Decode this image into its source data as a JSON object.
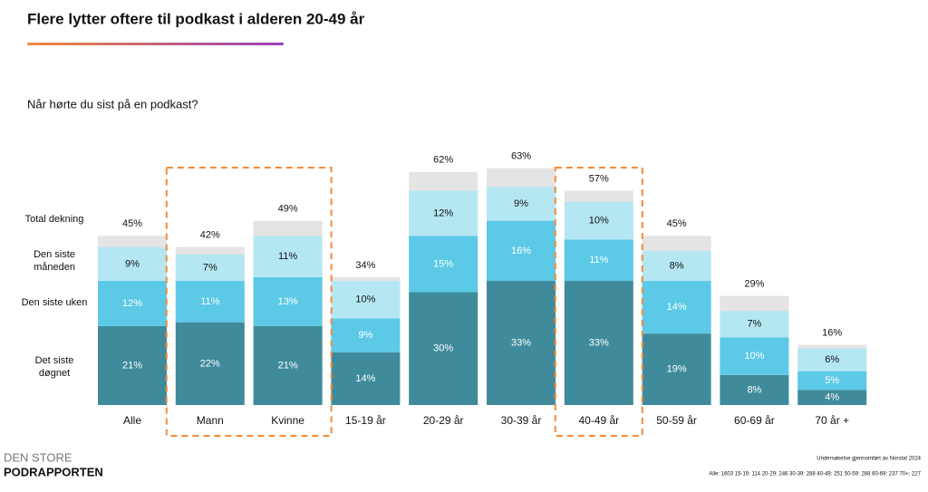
{
  "title": "Flere lytter oftere til podkast i alderen 20-49 år",
  "chart_data": {
    "type": "stacked-bar",
    "subtitle": "Når hørte du sist på en podkast?",
    "categories": [
      "Alle",
      "Mann",
      "Kvinne",
      "15-19 år",
      "20-29 år",
      "30-39 år",
      "40-49 år",
      "50-59 år",
      "60-69 år",
      "70 år +"
    ],
    "series": [
      {
        "name": "Det siste døgnet",
        "color": "#3f8b9c",
        "values": [
          21,
          22,
          21,
          14,
          30,
          33,
          33,
          19,
          8,
          4
        ],
        "value_labels": [
          "21%",
          "22%",
          "21%",
          "14%",
          "30%",
          "33%",
          "33%",
          "19%",
          "8%",
          "4%"
        ]
      },
      {
        "name": "Den siste uken",
        "color": "#5cc9e6",
        "values": [
          12,
          11,
          13,
          9,
          15,
          16,
          11,
          14,
          10,
          5
        ],
        "value_labels": [
          "12%",
          "11%",
          "13%",
          "9%",
          "15%",
          "16%",
          "11%",
          "14%",
          "10%",
          "5%"
        ]
      },
      {
        "name": "Den siste måneden",
        "color": "#b5e7f3",
        "values": [
          9,
          7,
          11,
          10,
          12,
          9,
          10,
          8,
          7,
          6
        ],
        "value_labels": [
          "9%",
          "7%",
          "11%",
          "10%",
          "12%",
          "9%",
          "10%",
          "8%",
          "7%",
          "6%"
        ]
      }
    ],
    "total": {
      "name": "Total dekning",
      "color": "#e4e4e4",
      "values": [
        45,
        42,
        49,
        34,
        62,
        63,
        57,
        45,
        29,
        16
      ],
      "value_labels": [
        "45%",
        "42%",
        "49%",
        "34%",
        "62%",
        "63%",
        "57%",
        "45%",
        "29%",
        "16%"
      ]
    },
    "highlight": [
      [
        1,
        2
      ],
      [
        6
      ]
    ],
    "highlight_color": "#f28c38"
  },
  "footer": {
    "brand_top": "DEN STORE",
    "brand_bottom": "PODRAPPORTEN",
    "source": "Undersøkelse gjennomført av Norstat 2024",
    "sample": "Alle: 1603 15-19: 114 20-29: 246 30-39: 288 40-49: 251 50-59: 288 60-69: 237 70+: 227"
  }
}
